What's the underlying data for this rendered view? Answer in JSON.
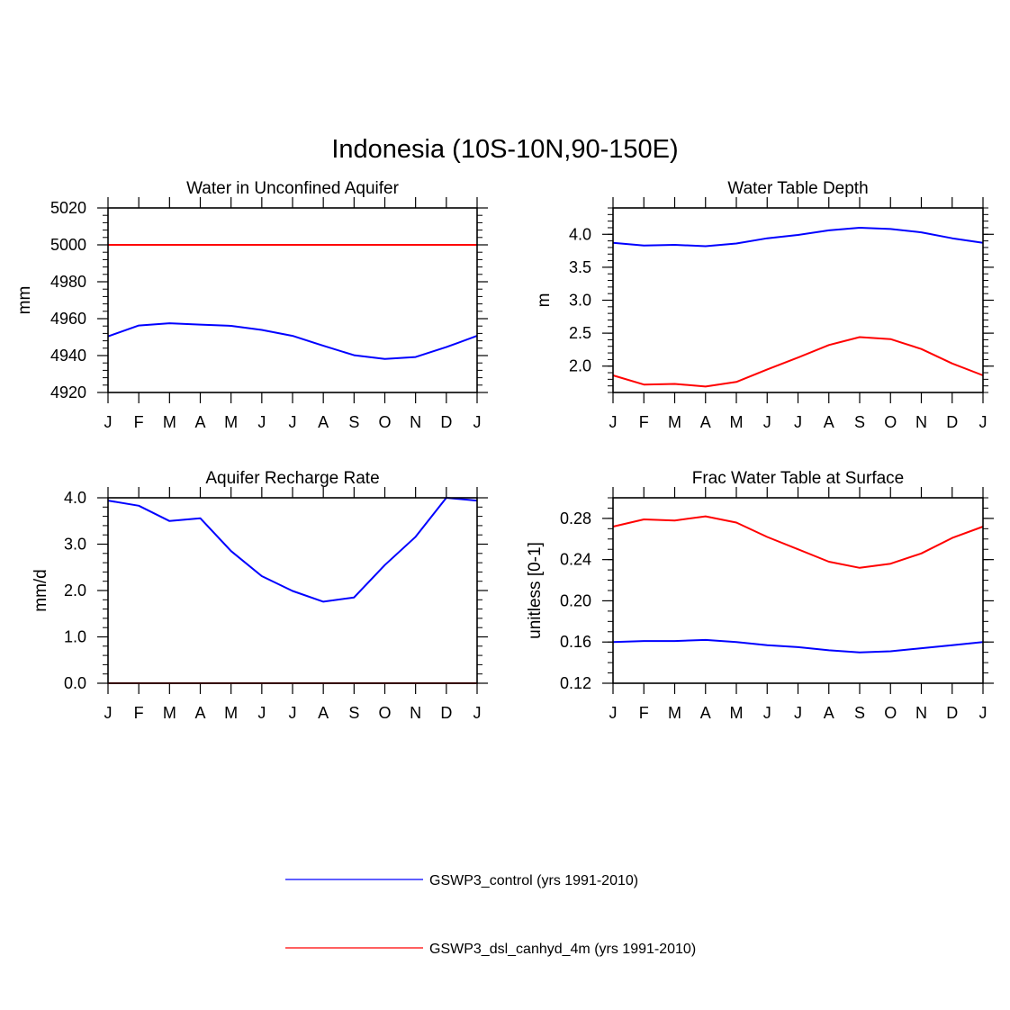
{
  "figure_title": "Indonesia (10S-10N,90-150E)",
  "colors": {
    "control": "#0000ff",
    "experiment": "#ff0000",
    "axis": "#000000"
  },
  "legend": [
    {
      "label": "GSWP3_control (yrs 1991-2010)",
      "color": "#0000ff"
    },
    {
      "label": "GSWP3_dsl_canhyd_4m (yrs 1991-2010)",
      "color": "#ff0000"
    }
  ],
  "chart_data": [
    {
      "type": "line",
      "title": "Water in Unconfined Aquifer",
      "xlabel": "",
      "ylabel": "mm",
      "categories": [
        "J",
        "F",
        "M",
        "A",
        "M",
        "J",
        "J",
        "A",
        "S",
        "O",
        "N",
        "D",
        "J"
      ],
      "ylim": [
        4920,
        5020
      ],
      "yticks": [
        4920,
        4940,
        4960,
        4980,
        5000,
        5020
      ],
      "ytick_labels": [
        "4920",
        "4940",
        "4960",
        "4980",
        "5000",
        "5020"
      ],
      "yminor_step": 4,
      "series": [
        {
          "name": "GSWP3_control (yrs 1991-2010)",
          "color": "#0000ff",
          "values": [
            4950.4,
            4956.3,
            4957.5,
            4956.8,
            4956.1,
            4953.9,
            4950.7,
            4945.3,
            4940.2,
            4938.2,
            4939.2,
            4944.6,
            4950.7
          ]
        },
        {
          "name": "GSWP3_dsl_canhyd_4m (yrs 1991-2010)",
          "color": "#ff0000",
          "values": [
            5000,
            5000,
            5000,
            5000,
            5000,
            5000,
            5000,
            5000,
            5000,
            5000,
            5000,
            5000,
            5000
          ]
        }
      ]
    },
    {
      "type": "line",
      "title": "Water Table Depth",
      "xlabel": "",
      "ylabel": "m",
      "categories": [
        "J",
        "F",
        "M",
        "A",
        "M",
        "J",
        "J",
        "A",
        "S",
        "O",
        "N",
        "D",
        "J"
      ],
      "ylim": [
        1.6,
        4.4
      ],
      "yticks": [
        2.0,
        2.5,
        3.0,
        3.5,
        4.0
      ],
      "ytick_labels": [
        "2.0",
        "2.5",
        "3.0",
        "3.5",
        "4.0"
      ],
      "yminor_step": 0.1,
      "series": [
        {
          "name": "GSWP3_control (yrs 1991-2010)",
          "color": "#0000ff",
          "values": [
            3.87,
            3.83,
            3.84,
            3.82,
            3.86,
            3.94,
            3.99,
            4.06,
            4.1,
            4.08,
            4.03,
            3.94,
            3.87
          ]
        },
        {
          "name": "GSWP3_dsl_canhyd_4m (yrs 1991-2010)",
          "color": "#ff0000",
          "values": [
            1.86,
            1.72,
            1.73,
            1.69,
            1.76,
            1.95,
            2.13,
            2.32,
            2.44,
            2.41,
            2.26,
            2.04,
            1.86
          ]
        }
      ]
    },
    {
      "type": "line",
      "title": "Aquifer Recharge Rate",
      "xlabel": "",
      "ylabel": "mm/d",
      "categories": [
        "J",
        "F",
        "M",
        "A",
        "M",
        "J",
        "J",
        "A",
        "S",
        "O",
        "N",
        "D",
        "J"
      ],
      "ylim": [
        0.0,
        4.0
      ],
      "yticks": [
        0.0,
        1.0,
        2.0,
        3.0,
        4.0
      ],
      "ytick_labels": [
        "0.0",
        "1.0",
        "2.0",
        "3.0",
        "4.0"
      ],
      "yminor_step": 0.2,
      "series": [
        {
          "name": "GSWP3_control (yrs 1991-2010)",
          "color": "#0000ff",
          "values": [
            3.94,
            3.83,
            3.5,
            3.56,
            2.85,
            2.31,
            1.99,
            1.76,
            1.85,
            2.55,
            3.16,
            4.0,
            3.94
          ]
        },
        {
          "name": "GSWP3_dsl_canhyd_4m (yrs 1991-2010)",
          "color": "#ff0000",
          "values": [
            0.0,
            0.0,
            0.0,
            0.0,
            0.0,
            0.0,
            0.0,
            0.0,
            0.0,
            0.0,
            0.0,
            0.0,
            0.0
          ]
        }
      ]
    },
    {
      "type": "line",
      "title": "Frac Water Table at Surface",
      "xlabel": "",
      "ylabel": "unitless [0-1]",
      "categories": [
        "J",
        "F",
        "M",
        "A",
        "M",
        "J",
        "J",
        "A",
        "S",
        "O",
        "N",
        "D",
        "J"
      ],
      "ylim": [
        0.12,
        0.3
      ],
      "yticks": [
        0.12,
        0.16,
        0.2,
        0.24,
        0.28
      ],
      "ytick_labels": [
        "0.12",
        "0.16",
        "0.20",
        "0.24",
        "0.28"
      ],
      "yminor_step": 0.01,
      "series": [
        {
          "name": "GSWP3_control (yrs 1991-2010)",
          "color": "#0000ff",
          "values": [
            0.16,
            0.161,
            0.161,
            0.162,
            0.16,
            0.157,
            0.155,
            0.152,
            0.15,
            0.151,
            0.154,
            0.157,
            0.16
          ]
        },
        {
          "name": "GSWP3_dsl_canhyd_4m (yrs 1991-2010)",
          "color": "#ff0000",
          "values": [
            0.272,
            0.279,
            0.278,
            0.282,
            0.276,
            0.262,
            0.25,
            0.238,
            0.232,
            0.236,
            0.246,
            0.261,
            0.272
          ]
        }
      ]
    }
  ]
}
